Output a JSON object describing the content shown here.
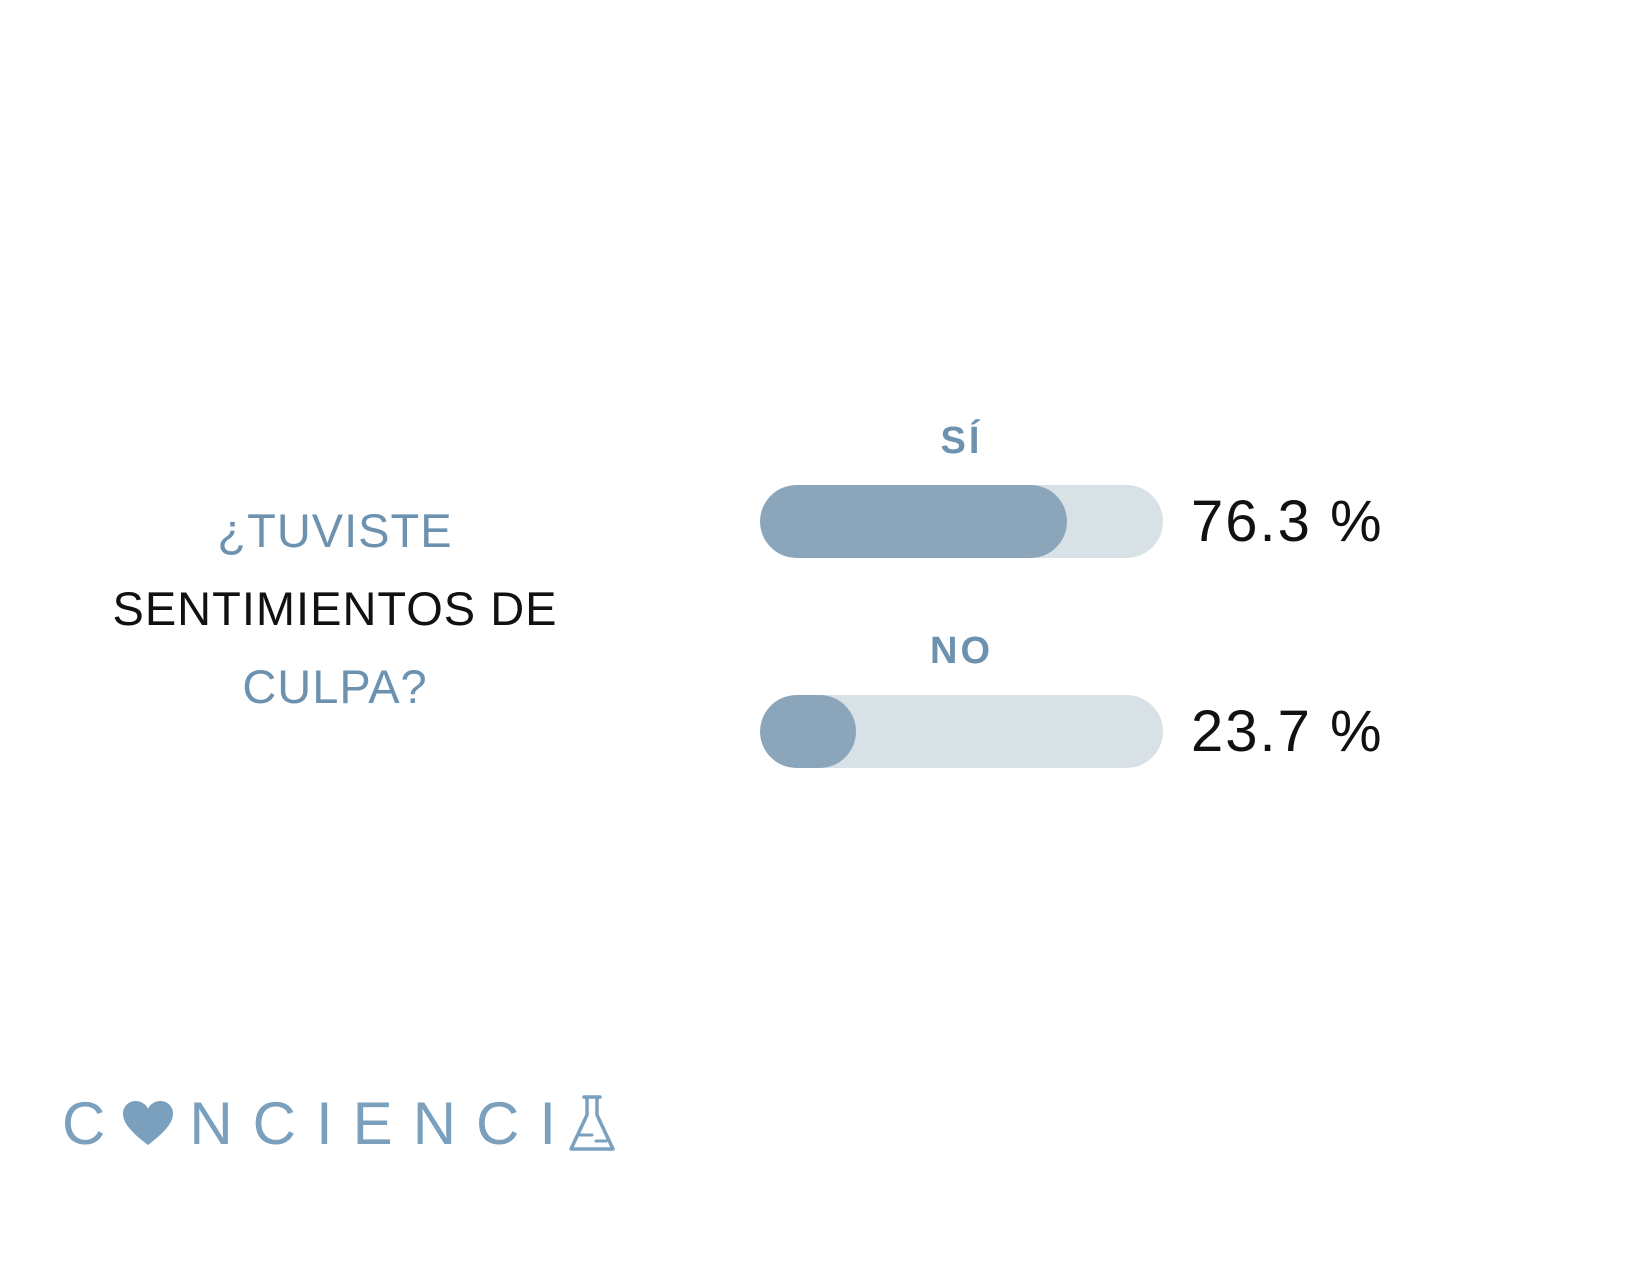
{
  "question": {
    "line1": "¿TUVISTE",
    "line2": "SENTIMIENTOS DE",
    "line3": "CULPA?"
  },
  "chart_data": {
    "type": "bar",
    "orientation": "horizontal",
    "title": "¿TUVISTE SENTIMIENTOS DE CULPA?",
    "categories": [
      "SÍ",
      "NO"
    ],
    "values": [
      76.3,
      23.7
    ],
    "value_labels": [
      "76.3 %",
      "23.7 %"
    ],
    "xlim": [
      0,
      100
    ],
    "legend": "none",
    "grid": false
  },
  "logo": {
    "part1": "C",
    "heart_icon": "heart-icon",
    "part2": "NCIENCI",
    "flask_icon": "flask-icon",
    "full_name": "CONCIENCIA"
  },
  "colors": {
    "accent_blue_text": "#6d92b0",
    "bar_fill": "#8ba6bb",
    "bar_track": "#d8e1e6",
    "logo_blue": "#7aa0bd",
    "text_dark": "#111111",
    "background": "#ffffff"
  }
}
